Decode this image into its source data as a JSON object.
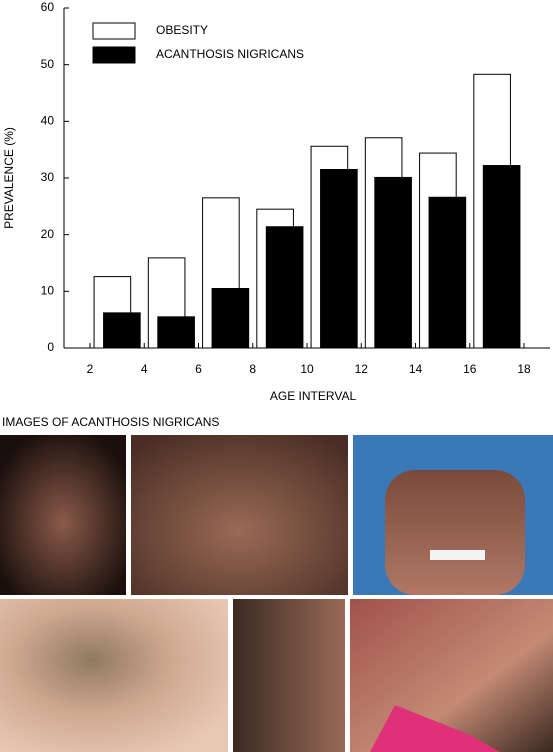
{
  "chart_data": {
    "type": "bar",
    "xlabel": "AGE INTERVAL",
    "ylabel": "PREVALENCE (%)",
    "x": [
      2,
      4,
      6,
      8,
      10,
      12,
      14,
      16
    ],
    "series": [
      {
        "name": "OBESITY",
        "color": "#ffffff",
        "values": [
          12.6,
          15.9,
          26.5,
          24.5,
          35.6,
          37.1,
          34.4,
          48.3
        ]
      },
      {
        "name": "ACANTHOSIS NIGRICANS",
        "color": "#000000",
        "values": [
          6.2,
          5.5,
          10.5,
          21.4,
          31.5,
          30.1,
          26.6,
          32.2
        ]
      }
    ],
    "xlim": [
      2,
      18
    ],
    "xticks": [
      2,
      4,
      6,
      8,
      10,
      12,
      14,
      16,
      18
    ],
    "ylim": [
      0,
      60
    ],
    "yticks": [
      0,
      10,
      20,
      30,
      40,
      50,
      60
    ],
    "legend": "upper left"
  },
  "images_heading": "IMAGES OF ACANTHOSIS NIGRICANS"
}
